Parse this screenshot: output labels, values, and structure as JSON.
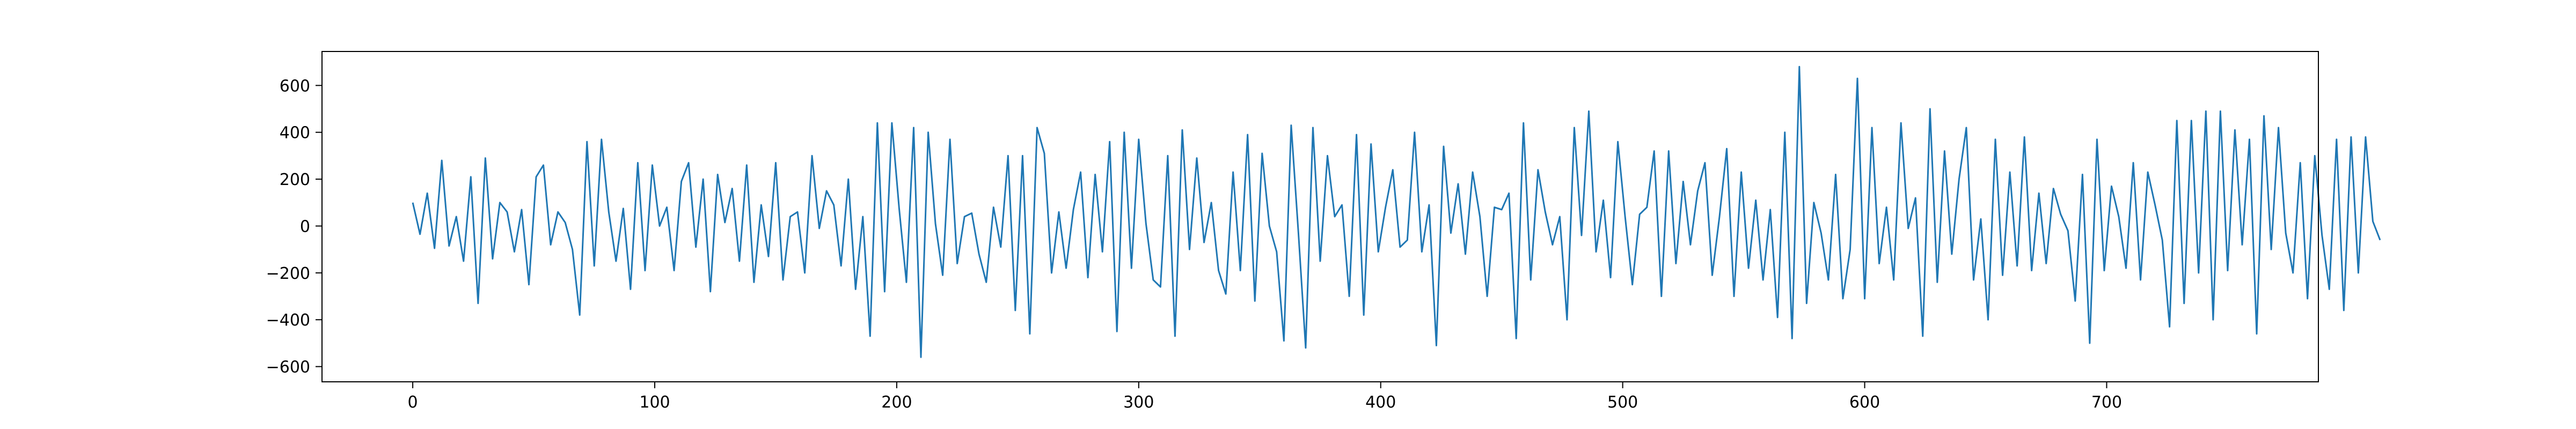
{
  "chart_data": {
    "type": "line",
    "title": "",
    "xlabel": "",
    "ylabel": "",
    "xlim": [
      -37.5,
      787.5
    ],
    "ylim": [
      -665,
      745
    ],
    "grid": false,
    "legend": "none",
    "x_ticks": [
      0,
      100,
      200,
      300,
      400,
      500,
      600,
      700
    ],
    "y_ticks": [
      -600,
      -400,
      -200,
      0,
      200,
      400,
      600
    ],
    "colors": {
      "line": "#1f77b4",
      "axes": "#000000",
      "background": "#ffffff"
    },
    "series": [
      {
        "x_start": 0,
        "x_step": 3,
        "values": [
          100,
          -35,
          140,
          -95,
          280,
          -85,
          40,
          -150,
          210,
          -330,
          290,
          -140,
          100,
          60,
          -110,
          70,
          -250,
          210,
          260,
          -80,
          60,
          15,
          -100,
          -380,
          360,
          -170,
          370,
          60,
          -150,
          75,
          -270,
          270,
          -190,
          260,
          0,
          80,
          -190,
          190,
          270,
          -90,
          200,
          -280,
          220,
          15,
          160,
          -150,
          260,
          -240,
          90,
          -130,
          270,
          -230,
          40,
          60,
          -200,
          300,
          -10,
          150,
          90,
          -170,
          200,
          -270,
          40,
          -470,
          440,
          -280,
          440,
          75,
          -240,
          420,
          -560,
          400,
          10,
          -210,
          370,
          -160,
          40,
          55,
          -120,
          -240,
          80,
          -90,
          300,
          -360,
          300,
          -460,
          420,
          310,
          -200,
          60,
          -180,
          70,
          230,
          -220,
          220,
          -110,
          360,
          -450,
          400,
          -180,
          370,
          10,
          -230,
          -260,
          300,
          -470,
          410,
          -100,
          290,
          -70,
          100,
          -190,
          -290,
          230,
          -190,
          390,
          -320,
          310,
          0,
          -110,
          -490,
          430,
          -30,
          -520,
          420,
          -150,
          300,
          40,
          90,
          -300,
          390,
          -380,
          350,
          -110,
          80,
          240,
          -90,
          -60,
          400,
          -110,
          90,
          -510,
          340,
          -30,
          180,
          -120,
          230,
          40,
          -300,
          80,
          70,
          140,
          -480,
          440,
          -230,
          240,
          60,
          -80,
          40,
          -400,
          420,
          -40,
          490,
          -110,
          110,
          -220,
          360,
          40,
          -250,
          50,
          80,
          320,
          -300,
          320,
          -160,
          190,
          -80,
          150,
          270,
          -210,
          40,
          330,
          -300,
          230,
          -180,
          110,
          -230,
          70,
          -390,
          400,
          -480,
          680,
          -330,
          100,
          -30,
          -230,
          220,
          -310,
          -100,
          630,
          -310,
          420,
          -160,
          80,
          -230,
          440,
          -10,
          120,
          -470,
          500,
          -240,
          320,
          -120,
          200,
          420,
          -230,
          30,
          -400,
          370,
          -210,
          230,
          -170,
          380,
          -190,
          140,
          -160,
          160,
          50,
          -20,
          -320,
          220,
          -500,
          370,
          -190,
          170,
          40,
          -180,
          270,
          -230,
          230,
          90,
          -60,
          -430,
          450,
          -330,
          450,
          -200,
          490,
          -400,
          490,
          -190,
          410,
          -80,
          370,
          -460,
          470,
          -100,
          420,
          -30,
          -200,
          270,
          -310,
          300,
          -40,
          -270,
          370,
          -360,
          380,
          -200,
          380,
          20,
          -60
        ]
      }
    ]
  }
}
